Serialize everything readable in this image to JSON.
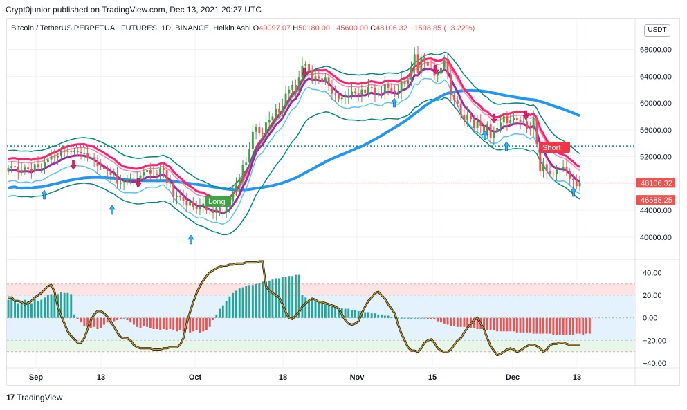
{
  "published_line": "Crypt0junior published on TradingView.com, Dec 13, 2021 20:27 UTC",
  "legend": {
    "symbol": "Bitcoin / TetherUS PERPETUAL FUTURES, 1D, BINANCE, Heikin Ashi",
    "o_label": "O",
    "o": "49097.07",
    "h_label": "H",
    "h": "50180.00",
    "l_label": "L",
    "l": "45600.00",
    "c_label": "C",
    "c": "48106.32",
    "change": "−1598.85 (−3.22%)"
  },
  "currency_button": "USDT",
  "footer_brand": "TradingView",
  "chart_data": {
    "type": "candlestick",
    "x": [
      "Sep",
      "13",
      "Oct",
      "18",
      "Nov",
      "15",
      "Dec",
      "13"
    ],
    "price_axis": {
      "ticks": [
        "68000.00",
        "64000.00",
        "60000.00",
        "56000.00",
        "52000.00",
        "48000.00",
        "44000.00",
        "40000.00"
      ],
      "tick_values": [
        68000,
        64000,
        60000,
        56000,
        52000,
        48000,
        44000,
        40000
      ],
      "ylim": [
        37000,
        72500
      ]
    },
    "price_labels": [
      {
        "text": "48106.32",
        "value": 48106.32,
        "color": "#ef5350"
      },
      {
        "text": "46588.25",
        "value": 46588.25,
        "color": "#ef5350"
      }
    ],
    "signals": [
      {
        "text": "Long",
        "color": "#43a047"
      },
      {
        "text": "Short",
        "color": "#f23645"
      }
    ],
    "dotted_level": {
      "value": 53600,
      "color": "#00897b"
    },
    "osc_axis": {
      "ticks": [
        "40.00",
        "20.00",
        "0.00",
        "−20.00",
        "−40.00"
      ],
      "tick_values": [
        40,
        20,
        0,
        -20,
        -40
      ],
      "ylim": [
        -43,
        50
      ],
      "bands": [
        {
          "from": 20,
          "to": 30,
          "color": "#fce4e4"
        },
        {
          "from": -20,
          "to": 20,
          "color": "#e3f2fd"
        },
        {
          "from": -30,
          "to": -20,
          "color": "#e8f5e9"
        }
      ]
    },
    "candles_close": [
      50300,
      50600,
      50500,
      49700,
      50000,
      50400,
      50200,
      49800,
      50900,
      50500,
      50500,
      51200,
      51600,
      52000,
      51900,
      52100,
      52800,
      52700,
      52800,
      52700,
      52800,
      52700,
      52500,
      52500,
      51800,
      51900,
      51400,
      50600,
      50500,
      50200,
      49800,
      49300,
      49400,
      48000,
      48100,
      48200,
      48600,
      48700,
      48500,
      48700,
      49200,
      49700,
      50000,
      49500,
      49500,
      49300,
      50300,
      50000,
      48100,
      48100,
      46000,
      46200,
      46000,
      45400,
      44700,
      45300,
      44500,
      44200,
      44700,
      45000,
      44000,
      44100,
      43600,
      44400,
      43600,
      43700,
      44700,
      45300,
      46800,
      47700,
      48900,
      50800,
      51100,
      53100,
      55700,
      56400,
      55500,
      55400,
      57100,
      57500,
      58000,
      59200,
      58600,
      59600,
      61400,
      62000,
      62700,
      61900,
      63800,
      65600,
      65800,
      64800,
      63400,
      64000,
      63700,
      63200,
      63800,
      62500,
      61400,
      61300,
      60600,
      60800,
      61000,
      61100,
      61700,
      61500,
      61200,
      62000,
      61500,
      62400,
      62300,
      61300,
      61500,
      61400,
      62800,
      62300,
      61800,
      61600,
      61700,
      63300,
      62900,
      63400,
      65400,
      67300,
      64500,
      66800,
      66200,
      65600,
      65500,
      64100,
      64400,
      65300,
      66400,
      64300,
      61200,
      60400,
      59900,
      58200,
      57500,
      58300,
      57600,
      56300,
      57300,
      56600,
      55500,
      56800,
      54800,
      55700,
      56300,
      57100,
      58100,
      57000,
      57500,
      57800,
      57500,
      57200,
      57300,
      56200,
      56100,
      57700,
      53900,
      49800,
      50900,
      49800,
      49500,
      49400,
      50100,
      50200,
      50500,
      49800,
      48700,
      48500,
      47600,
      48100
    ],
    "candles_open": [
      49800,
      50300,
      50600,
      50500,
      49700,
      50000,
      50400,
      50200,
      49800,
      50900,
      50500,
      50500,
      51200,
      51600,
      52000,
      51900,
      52100,
      52800,
      52700,
      52800,
      52700,
      52800,
      52700,
      52500,
      52500,
      51800,
      51900,
      51400,
      50600,
      50500,
      50200,
      49800,
      49300,
      49400,
      48000,
      48100,
      48200,
      48600,
      48700,
      48500,
      48700,
      49200,
      49700,
      50000,
      49500,
      49500,
      49300,
      50300,
      50000,
      48100,
      48100,
      46000,
      46200,
      46000,
      45400,
      44700,
      45300,
      44500,
      44200,
      44700,
      45000,
      44000,
      44100,
      43600,
      44400,
      43600,
      43700,
      44700,
      45300,
      46800,
      47700,
      48900,
      50800,
      51100,
      53100,
      55700,
      56400,
      55500,
      55400,
      57100,
      57500,
      58000,
      59200,
      58600,
      59600,
      61400,
      62000,
      62700,
      61900,
      63800,
      65600,
      65800,
      64800,
      63400,
      64000,
      63700,
      63200,
      63800,
      62500,
      61400,
      61300,
      60600,
      60800,
      61000,
      61100,
      61700,
      61500,
      61200,
      62000,
      61500,
      62400,
      62300,
      61300,
      61500,
      61400,
      62800,
      62300,
      61800,
      61600,
      61700,
      63300,
      62900,
      63400,
      65400,
      67300,
      64500,
      66800,
      66200,
      65600,
      65500,
      64100,
      64400,
      65300,
      66400,
      64300,
      61200,
      60400,
      59900,
      58200,
      57500,
      58300,
      57600,
      56300,
      57300,
      56600,
      55500,
      56800,
      54800,
      55700,
      56300,
      57100,
      58100,
      57000,
      57500,
      57800,
      57500,
      57200,
      57300,
      56200,
      56100,
      57700,
      53900,
      49800,
      50900,
      49800,
      49500,
      49400,
      50100,
      50200,
      50500,
      49800,
      48700,
      48500,
      47600
    ],
    "osc_hist": [
      16,
      17,
      15,
      13,
      14,
      16,
      15,
      13,
      17,
      15,
      16,
      18,
      20,
      21,
      20,
      21,
      23,
      22,
      22,
      21,
      3,
      -1,
      -4,
      -7,
      -8,
      -9,
      -8,
      -10,
      -9,
      -6,
      -4,
      -5,
      -3,
      -2,
      -1,
      0,
      -2,
      -4,
      -6,
      -8,
      -9,
      -7,
      -8,
      -9,
      -10,
      -10,
      -11,
      -10,
      -11,
      -10,
      -11,
      -12,
      -11,
      -12,
      -10,
      -13,
      -12,
      -11,
      -13,
      -12,
      -11,
      -8,
      -2,
      3,
      8,
      11,
      15,
      19,
      22,
      24,
      26,
      27,
      28,
      29,
      29,
      30,
      31,
      32,
      32,
      33,
      34,
      35,
      35,
      36,
      36,
      37,
      37,
      38,
      38,
      20,
      18,
      16,
      16,
      15,
      14,
      13,
      12,
      11,
      10,
      10,
      9,
      9,
      8,
      8,
      7,
      7,
      6,
      6,
      5,
      5,
      4,
      4,
      3,
      3,
      2,
      2,
      1,
      1,
      0,
      0,
      0,
      0,
      0,
      0,
      0,
      0,
      0,
      -1,
      -1,
      -1,
      -3,
      -4,
      -5,
      -6,
      -7,
      -7,
      -8,
      -8,
      -8,
      -9,
      -9,
      -9,
      -10,
      -10,
      -10,
      -11,
      -11,
      -11,
      -12,
      -12,
      -12,
      -12,
      -12,
      -12,
      -13,
      -13,
      -13,
      -13,
      -13,
      -14,
      -14,
      -14,
      -14,
      -14,
      -14,
      -15,
      -15,
      -15,
      -15,
      -15,
      -15,
      -15,
      -14,
      -14,
      -15,
      -14,
      -14
    ],
    "osc_line": [
      18,
      18,
      15,
      15,
      14,
      12,
      13,
      15,
      18,
      20,
      22,
      25,
      28,
      29,
      23,
      10,
      2,
      -5,
      -12,
      -16,
      -19,
      -22,
      -22,
      -18,
      -10,
      -2,
      3,
      6,
      6,
      4,
      1,
      -3,
      -8,
      -13,
      -17,
      -18,
      -18,
      -20,
      -24,
      -26,
      -27,
      -27,
      -27,
      -27,
      -28,
      -28,
      -28,
      -27,
      -27,
      -26,
      -26,
      -26,
      -24,
      -18,
      -5,
      5,
      14,
      22,
      28,
      33,
      37,
      40,
      42,
      44,
      45,
      46,
      46,
      47,
      47,
      48,
      48,
      48,
      49,
      49,
      49,
      49,
      50,
      50,
      28,
      24,
      22,
      20,
      18,
      12,
      5,
      0,
      -1,
      2,
      5,
      10,
      13,
      15,
      17,
      16,
      14,
      14,
      13,
      12,
      11,
      10,
      8,
      3,
      -2,
      -5,
      -6,
      -5,
      -3,
      4,
      10,
      15,
      18,
      22,
      23,
      20,
      17,
      12,
      8,
      4,
      -6,
      -14,
      -20,
      -26,
      -29,
      -29,
      -30,
      -27,
      -22,
      -20,
      -19,
      -22,
      -27,
      -29,
      -30,
      -30,
      -28,
      -24,
      -20,
      -18,
      -13,
      -9,
      -5,
      -2,
      0,
      -5,
      -10,
      -18,
      -25,
      -29,
      -33,
      -32,
      -30,
      -28,
      -27,
      -28,
      -30,
      -29,
      -27,
      -25,
      -24,
      -24,
      -25,
      -27,
      -30,
      -28,
      -24,
      -23,
      -23,
      -22,
      -22,
      -23,
      -24,
      -24,
      -24,
      -24
    ]
  }
}
